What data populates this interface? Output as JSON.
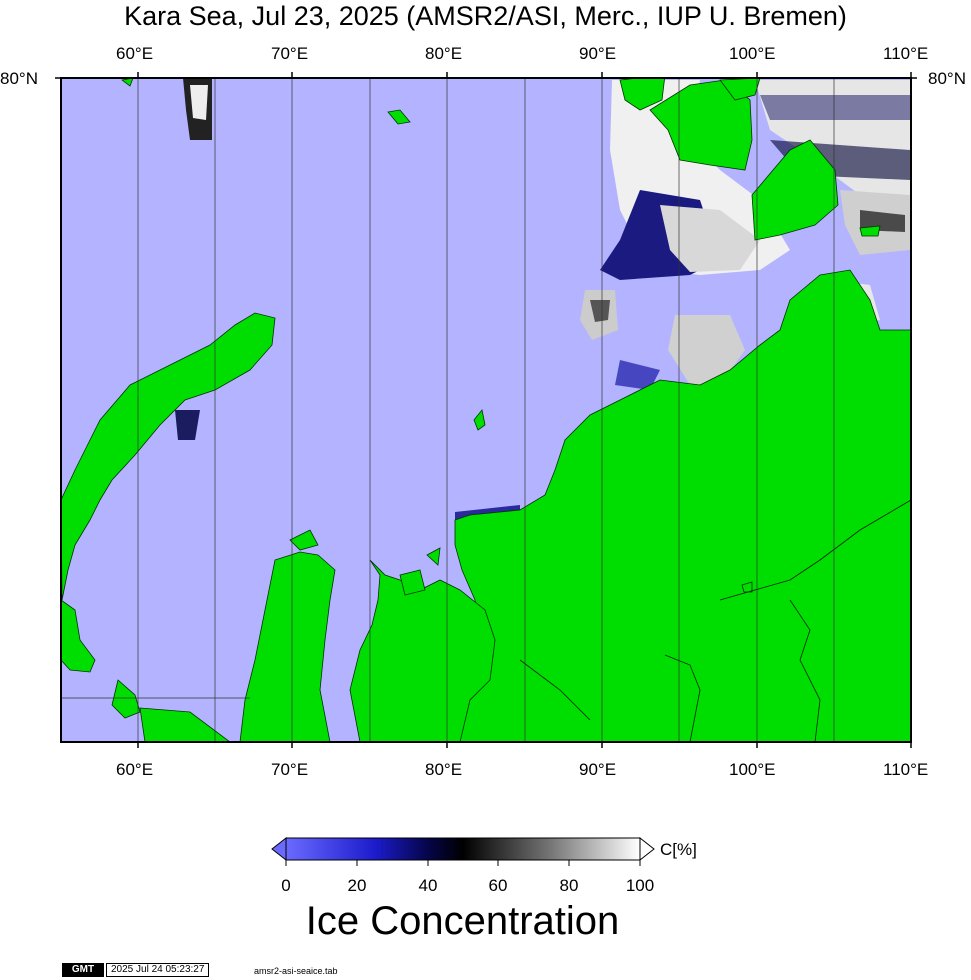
{
  "title": "Kara Sea, Jul 23, 2025 (AMSR2/ASI, Merc., IUP U. Bremen)",
  "map": {
    "lon_labels": [
      "60°E",
      "70°E",
      "80°E",
      "90°E",
      "100°E",
      "110°E"
    ],
    "lat_labels": [
      "80°N"
    ],
    "colors": {
      "water": "#b3b3ff",
      "land": "#00dd00",
      "frame": "#000000"
    }
  },
  "colorbar": {
    "ticks": [
      "0",
      "20",
      "40",
      "60",
      "80",
      "100"
    ],
    "unit": "C[%]",
    "title": "Ice Concentration"
  },
  "footer": {
    "logo": "GMT",
    "timestamp": "2025 Jul 24 05:23:27",
    "filename": "amsr2-asi-seaice.tab"
  }
}
